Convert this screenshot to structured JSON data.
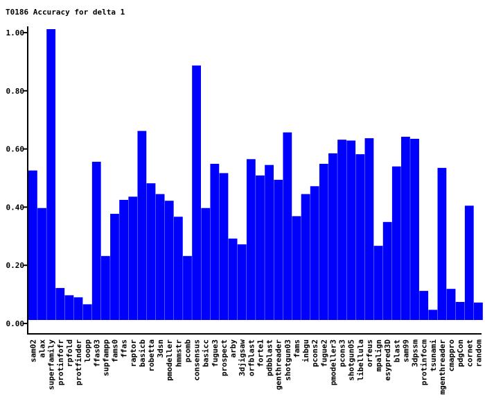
{
  "chart_data": {
    "type": "bar",
    "title": "T0186 Accuracy for delta 1",
    "xlabel": "",
    "ylabel": "",
    "ylim": [
      0,
      1.02
    ],
    "yticks": [
      0.0,
      0.2,
      0.4,
      0.6,
      0.8,
      1.0
    ],
    "ytick_labels": [
      "0.00",
      "0.20",
      "0.40",
      "0.60",
      "0.80",
      "1.00"
    ],
    "bar_color": "#0000ff",
    "axis_color": "#000000",
    "grid": false,
    "legend": "none",
    "categories": [
      "sam02",
      "alax",
      "superfamily",
      "protinfofr",
      "rpfold",
      "protfinder",
      "loopp",
      "ffas03",
      "supfampp",
      "fams0",
      "ffas",
      "raptor",
      "basicb",
      "robetta",
      "3dsn",
      "pmodeller",
      "hmmstr",
      "pcomb",
      "consensus",
      "basicc",
      "fugue3",
      "prospect",
      "arby",
      "3djigsaw",
      "orfblast",
      "forte1",
      "pdbblast",
      "genthreader",
      "shotgun03",
      "fams",
      "inbgu",
      "pcons2",
      "fugue2",
      "pmodeller3",
      "pcons3",
      "shotgun05",
      "libellula",
      "orfeus",
      "mpalign",
      "esypred3D",
      "blast",
      "sam99",
      "3dpssm",
      "protinfocm",
      "tsunami",
      "mgenthreader",
      "cmappro",
      "pdgCon",
      "cornet",
      "random"
    ],
    "values": [
      0.514,
      0.385,
      1.0,
      0.11,
      0.085,
      0.078,
      0.054,
      0.544,
      0.22,
      0.365,
      0.413,
      0.424,
      0.65,
      0.47,
      0.433,
      0.41,
      0.355,
      0.22,
      0.875,
      0.385,
      0.537,
      0.505,
      0.28,
      0.26,
      0.553,
      0.497,
      0.533,
      0.482,
      0.645,
      0.357,
      0.433,
      0.46,
      0.537,
      0.573,
      0.62,
      0.617,
      0.57,
      0.625,
      0.255,
      0.337,
      0.528,
      0.63,
      0.623,
      0.1,
      0.035,
      0.523,
      0.107,
      0.062,
      0.393,
      0.06
    ]
  }
}
